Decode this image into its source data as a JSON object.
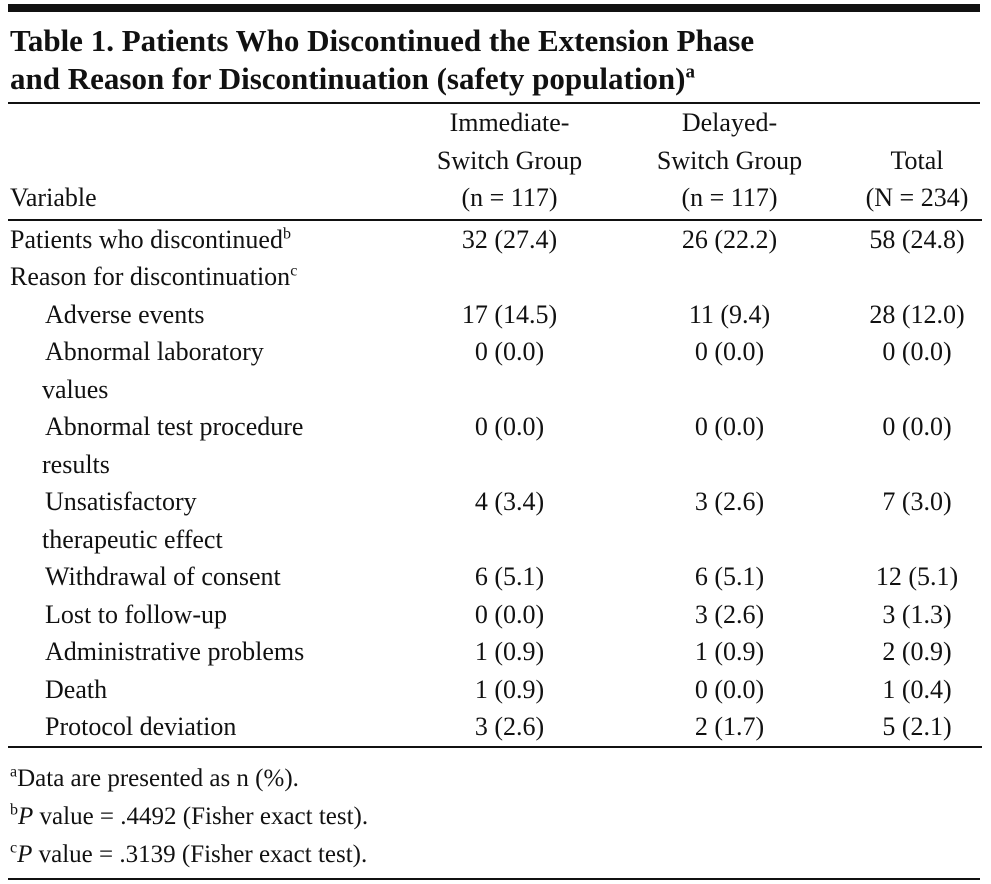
{
  "title": {
    "lines": [
      "Table 1. Patients Who Discontinued the Extension Phase",
      "and Reason for Discontinuation (safety population)"
    ],
    "note_mark": "a"
  },
  "table": {
    "columns": [
      {
        "lines": [
          "Variable"
        ]
      },
      {
        "lines": [
          "Immediate-",
          "Switch Group",
          "(n = 117)"
        ]
      },
      {
        "lines": [
          "Delayed-",
          "Switch Group",
          "(n = 117)"
        ]
      },
      {
        "lines": [
          "Total",
          "(N = 234)"
        ]
      }
    ],
    "rows": [
      {
        "label_lines": [
          "Patients who discontinued"
        ],
        "note_mark": "b",
        "cells": [
          "32 (27.4)",
          "26 (22.2)",
          "58 (24.8)"
        ]
      },
      {
        "label_lines": [
          "Reason for discontinuation"
        ],
        "note_mark": "c",
        "sub_rows": [
          {
            "label_lines": [
              "Adverse events"
            ],
            "cells": [
              "17 (14.5)",
              "11 (9.4)",
              "28 (12.0)"
            ]
          },
          {
            "label_lines": [
              "Abnormal laboratory",
              "values"
            ],
            "cells": [
              "0 (0.0)",
              "0 (0.0)",
              "0 (0.0)"
            ]
          },
          {
            "label_lines": [
              "Abnormal test procedure",
              "results"
            ],
            "cells": [
              "0 (0.0)",
              "0 (0.0)",
              "0 (0.0)"
            ]
          },
          {
            "label_lines": [
              "Unsatisfactory",
              "therapeutic effect"
            ],
            "cells": [
              "4 (3.4)",
              "3 (2.6)",
              "7 (3.0)"
            ]
          },
          {
            "label_lines": [
              "Withdrawal of consent"
            ],
            "cells": [
              "6 (5.1)",
              "6 (5.1)",
              "12 (5.1)"
            ]
          },
          {
            "label_lines": [
              "Lost to follow-up"
            ],
            "cells": [
              "0 (0.0)",
              "3 (2.6)",
              "3 (1.3)"
            ]
          },
          {
            "label_lines": [
              "Administrative problems"
            ],
            "cells": [
              "1 (0.9)",
              "1 (0.9)",
              "2 (0.9)"
            ]
          },
          {
            "label_lines": [
              "Death"
            ],
            "cells": [
              "1 (0.9)",
              "0 (0.0)",
              "1 (0.4)"
            ]
          },
          {
            "label_lines": [
              "Protocol deviation"
            ],
            "cells": [
              "3 (2.6)",
              "2 (1.7)",
              "5 (2.1)"
            ]
          }
        ]
      }
    ]
  },
  "footnotes": [
    {
      "mark": "a",
      "text": "Data are presented as n (%)."
    },
    {
      "mark": "b",
      "italic": "P",
      "text": " value = .4492 (Fisher exact test)."
    },
    {
      "mark": "c",
      "italic": "P",
      "text": " value = .3139 (Fisher exact test)."
    }
  ]
}
